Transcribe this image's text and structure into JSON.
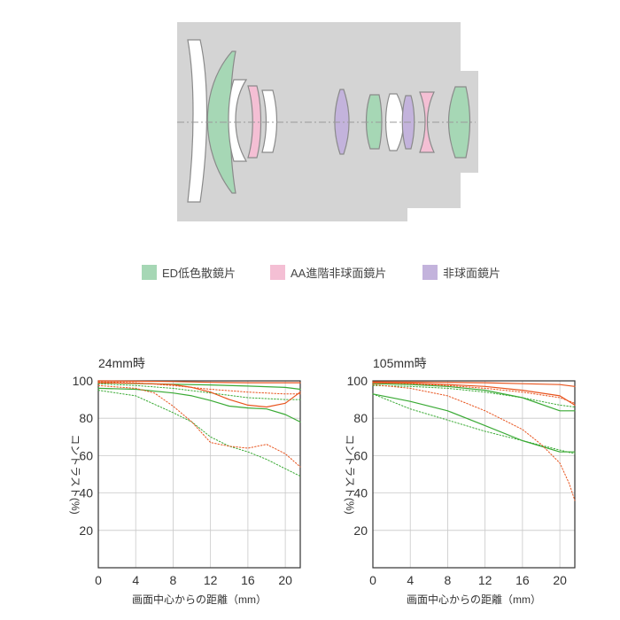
{
  "legend": {
    "items": [
      {
        "label": "ED低色散鏡片",
        "color": "#a6d7b5"
      },
      {
        "label": "AA進階非球面鏡片",
        "color": "#f4bfd4"
      },
      {
        "label": "非球面鏡片",
        "color": "#c3b3dc"
      }
    ]
  },
  "colors": {
    "body": "#d4d4d4",
    "glass": "#ffffff",
    "outline": "#8a8a8a",
    "axis_line": "#9a9a9a",
    "ed": "#a6d7b5",
    "aa": "#f4bfd4",
    "asph": "#c3b3dc",
    "green_series": "#3aaa35",
    "orange_series": "#e8541e"
  },
  "chart_data": [
    {
      "type": "line",
      "title": "24mm時",
      "ylabel": "コントラスト(%)",
      "xlabel": "画面中心からの距離（mm）",
      "xlim": [
        0,
        21.6
      ],
      "ylim": [
        0,
        100
      ],
      "xticks": [
        "0",
        "4",
        "8",
        "12",
        "16",
        "20"
      ],
      "yticks": [
        "100",
        "80",
        "60",
        "40",
        "20"
      ],
      "grid": true,
      "series": [
        {
          "color": "green",
          "dash": "solid",
          "x": [
            0,
            4,
            8,
            12,
            16,
            20,
            21.6
          ],
          "y": [
            99,
            98.6,
            98.2,
            97.8,
            97.2,
            96.5,
            95.5
          ]
        },
        {
          "color": "green",
          "dash": "solid",
          "x": [
            0,
            4,
            8,
            10,
            12,
            14,
            16,
            18,
            20,
            21.6
          ],
          "y": [
            96,
            95.5,
            93.5,
            92,
            89.5,
            86.5,
            85.5,
            85,
            82,
            78
          ]
        },
        {
          "color": "green",
          "dash": "dotted",
          "x": [
            0,
            4,
            8,
            12,
            16,
            20,
            21.6
          ],
          "y": [
            98.5,
            97.5,
            96,
            93.5,
            91,
            90,
            90
          ]
        },
        {
          "color": "green",
          "dash": "dotted",
          "x": [
            0,
            4,
            8,
            10,
            12,
            14,
            16,
            18,
            20,
            21.6
          ],
          "y": [
            95,
            92,
            83,
            78,
            70,
            65,
            62,
            58,
            53,
            49
          ]
        },
        {
          "color": "orange",
          "dash": "solid",
          "x": [
            0,
            4,
            8,
            12,
            16,
            20,
            21.6
          ],
          "y": [
            100,
            99.8,
            99.6,
            99.2,
            99,
            99,
            99
          ]
        },
        {
          "color": "orange",
          "dash": "solid",
          "x": [
            0,
            4,
            8,
            10,
            12,
            14,
            16,
            18,
            20,
            21.6
          ],
          "y": [
            99,
            98.7,
            98,
            96.5,
            94,
            90,
            87,
            86,
            88,
            94
          ]
        },
        {
          "color": "orange",
          "dash": "dotted",
          "x": [
            0,
            4,
            8,
            12,
            16,
            20,
            21.6
          ],
          "y": [
            99.5,
            99,
            97.5,
            95.5,
            94,
            93,
            93
          ]
        },
        {
          "color": "orange",
          "dash": "dotted",
          "x": [
            0,
            4,
            6,
            8,
            10,
            12,
            14,
            16,
            18,
            20,
            21.6
          ],
          "y": [
            97.5,
            96,
            93.5,
            86.5,
            78,
            67,
            65,
            64,
            66,
            61,
            54
          ]
        }
      ]
    },
    {
      "type": "line",
      "title": "105mm時",
      "ylabel": "コントラスト(%)",
      "xlabel": "画面中心からの距離（mm）",
      "xlim": [
        0,
        21.6
      ],
      "ylim": [
        0,
        100
      ],
      "xticks": [
        "0",
        "4",
        "8",
        "12",
        "16",
        "20"
      ],
      "yticks": [
        "100",
        "80",
        "60",
        "40",
        "20"
      ],
      "grid": true,
      "series": [
        {
          "color": "green",
          "dash": "solid",
          "x": [
            0,
            4,
            8,
            12,
            16,
            20,
            21.6
          ],
          "y": [
            98.5,
            98,
            97,
            95,
            91,
            84,
            84
          ]
        },
        {
          "color": "green",
          "dash": "solid",
          "x": [
            0,
            4,
            8,
            12,
            16,
            20,
            21.6
          ],
          "y": [
            93,
            89,
            84,
            76,
            68,
            62,
            62
          ]
        },
        {
          "color": "green",
          "dash": "dotted",
          "x": [
            0,
            4,
            8,
            12,
            16,
            20,
            21.6
          ],
          "y": [
            97.5,
            97,
            96,
            94,
            91,
            87,
            86
          ]
        },
        {
          "color": "green",
          "dash": "dotted",
          "x": [
            0,
            4,
            8,
            12,
            16,
            20,
            21.6
          ],
          "y": [
            93,
            85,
            79,
            73,
            68,
            63,
            61
          ]
        },
        {
          "color": "orange",
          "dash": "solid",
          "x": [
            0,
            4,
            8,
            12,
            16,
            20,
            21.6
          ],
          "y": [
            99.5,
            99.4,
            99.2,
            99,
            98.5,
            98,
            97
          ]
        },
        {
          "color": "orange",
          "dash": "solid",
          "x": [
            0,
            4,
            8,
            12,
            16,
            20,
            21.6
          ],
          "y": [
            99,
            98.8,
            98,
            97,
            95,
            92,
            87
          ]
        },
        {
          "color": "orange",
          "dash": "dotted",
          "x": [
            0,
            4,
            8,
            12,
            16,
            20,
            21.6
          ],
          "y": [
            99,
            98.5,
            97.5,
            96,
            94,
            91,
            88
          ]
        },
        {
          "color": "orange",
          "dash": "dotted",
          "x": [
            0,
            4,
            8,
            10,
            12,
            14,
            16,
            18,
            20,
            21,
            21.6
          ],
          "y": [
            98,
            96,
            92,
            88,
            84,
            79,
            74,
            66,
            56,
            45,
            36
          ]
        }
      ]
    }
  ]
}
